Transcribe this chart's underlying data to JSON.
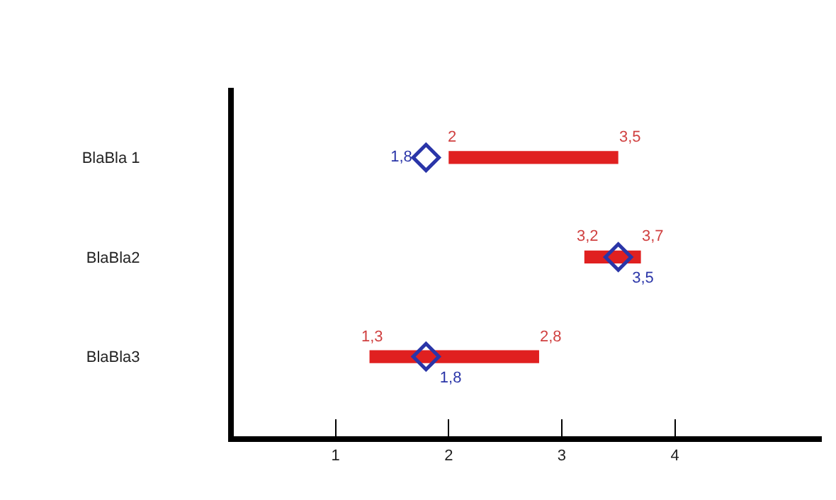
{
  "chart_data": {
    "type": "bar",
    "orientation": "horizontal",
    "categories": [
      "BlaBla 1",
      "BlaBla2",
      "BlaBla3"
    ],
    "series": [
      {
        "color": "#e02020",
        "values": [
          1.5,
          0.5,
          1.5
        ],
        "base": [
          2,
          3.2,
          1.3
        ]
      },
      {
        "type": "scatter",
        "color": "#2a35a8",
        "values": [
          1.8,
          3.5,
          1.8
        ],
        "value_labels": [
          "1,8",
          "3,5",
          "1,8"
        ]
      }
    ],
    "marker": "diamond",
    "xlim": [
      0.1,
      5.3
    ],
    "xticks": [
      1,
      2,
      3,
      4
    ],
    "grid": false,
    "annotations": [
      {
        "text": "2",
        "x": 2,
        "y": "BlaBla 1"
      },
      {
        "text": "3,5",
        "x": 3.5,
        "y": "BlaBla 1"
      },
      {
        "text": "3,2",
        "x": 3.2,
        "y": "BlaBla2"
      },
      {
        "text": "3,7",
        "x": 3.7,
        "y": "BlaBla2"
      },
      {
        "text": "1,3",
        "x": 1.3,
        "y": "BlaBla3"
      },
      {
        "text": "2,8",
        "x": 2.8,
        "y": "BlaBla3"
      }
    ]
  }
}
